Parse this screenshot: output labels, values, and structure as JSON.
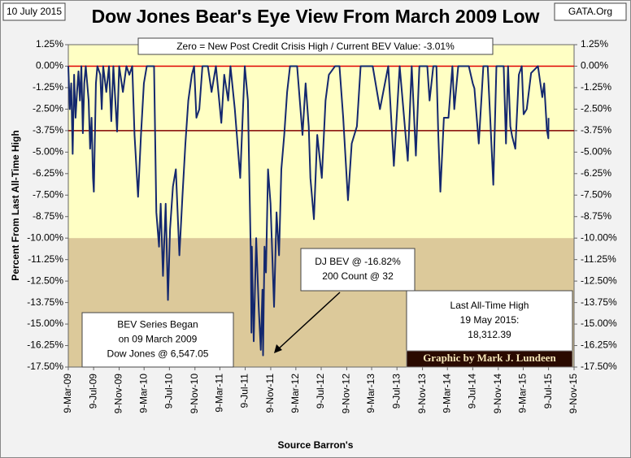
{
  "chart_data": {
    "type": "line",
    "date": "10 July 2015",
    "title": "Dow Jones Bear's Eye View From March 2009 Low",
    "source_tag": "GATA.Org",
    "subtitle": "Zero = New Post Credit Crisis High / Current BEV Value:  -3.01%",
    "y_label": "Percent From Last All-Time High",
    "x_label": "Source Barron's",
    "credit": "Graphic by Mark J. Lundeen",
    "annotations": [
      {
        "lines": [
          "BEV Series Began",
          "on 09 March 2009",
          "Dow Jones @ 6,547.05"
        ]
      },
      {
        "lines": [
          "DJ BEV @ -16.82%",
          "200 Count @ 32"
        ]
      },
      {
        "lines": [
          "Last All-Time High",
          "19 May 2015:",
          "18,312.39"
        ]
      }
    ],
    "reference_lines": [
      {
        "value": 0,
        "color": "#e00000"
      },
      {
        "value": -3.75,
        "color": "#800000"
      }
    ],
    "shade_below": -10,
    "xlim": [
      "2009-03-09",
      "2015-11-09"
    ],
    "xticks": [
      {
        "value": "2009-03-09",
        "label": "9-Mar-09"
      },
      {
        "value": "2009-07-09",
        "label": "9-Jul-09"
      },
      {
        "value": "2009-11-09",
        "label": "9-Nov-09"
      },
      {
        "value": "2010-03-09",
        "label": "9-Mar-10"
      },
      {
        "value": "2010-07-09",
        "label": "9-Jul-10"
      },
      {
        "value": "2010-11-09",
        "label": "9-Nov-10"
      },
      {
        "value": "2011-03-09",
        "label": "9-Mar-11"
      },
      {
        "value": "2011-07-09",
        "label": "9-Jul-11"
      },
      {
        "value": "2011-11-09",
        "label": "9-Nov-11"
      },
      {
        "value": "2012-03-09",
        "label": "9-Mar-12"
      },
      {
        "value": "2012-07-09",
        "label": "9-Jul-12"
      },
      {
        "value": "2012-11-09",
        "label": "9-Nov-12"
      },
      {
        "value": "2013-03-09",
        "label": "9-Mar-13"
      },
      {
        "value": "2013-07-09",
        "label": "9-Jul-13"
      },
      {
        "value": "2013-11-09",
        "label": "9-Nov-13"
      },
      {
        "value": "2014-03-09",
        "label": "9-Mar-14"
      },
      {
        "value": "2014-07-09",
        "label": "9-Jul-14"
      },
      {
        "value": "2014-11-09",
        "label": "9-Nov-14"
      },
      {
        "value": "2015-03-09",
        "label": "9-Mar-15"
      },
      {
        "value": "2015-07-09",
        "label": "9-Jul-15"
      },
      {
        "value": "2015-11-09",
        "label": "9-Nov-15"
      }
    ],
    "ylim": [
      -17.5,
      1.25
    ],
    "yticks": [
      {
        "value": 1.25,
        "label": "1.25%"
      },
      {
        "value": 0,
        "label": "0.00%"
      },
      {
        "value": -1.25,
        "label": "-1.25%"
      },
      {
        "value": -2.5,
        "label": "-2.50%"
      },
      {
        "value": -3.75,
        "label": "-3.75%"
      },
      {
        "value": -5,
        "label": "-5.00%"
      },
      {
        "value": -6.25,
        "label": "-6.25%"
      },
      {
        "value": -7.5,
        "label": "-7.50%"
      },
      {
        "value": -8.75,
        "label": "-8.75%"
      },
      {
        "value": -10,
        "label": "-10.00%"
      },
      {
        "value": -11.25,
        "label": "-11.25%"
      },
      {
        "value": -12.5,
        "label": "-12.50%"
      },
      {
        "value": -13.75,
        "label": "-13.75%"
      },
      {
        "value": -15,
        "label": "-15.00%"
      },
      {
        "value": -16.25,
        "label": "-16.25%"
      },
      {
        "value": -17.5,
        "label": "-17.50%"
      }
    ],
    "x": [
      "2009-03-09",
      "2009-03-16",
      "2009-03-23",
      "2009-03-30",
      "2009-04-06",
      "2009-04-13",
      "2009-04-20",
      "2009-04-27",
      "2009-05-04",
      "2009-05-11",
      "2009-05-18",
      "2009-05-25",
      "2009-06-01",
      "2009-06-15",
      "2009-06-22",
      "2009-06-29",
      "2009-07-06",
      "2009-07-10",
      "2009-07-20",
      "2009-07-27",
      "2009-08-10",
      "2009-08-17",
      "2009-08-24",
      "2009-09-08",
      "2009-09-21",
      "2009-10-02",
      "2009-10-12",
      "2009-10-30",
      "2009-11-09",
      "2009-11-27",
      "2009-12-14",
      "2009-12-28",
      "2010-01-11",
      "2010-01-22",
      "2010-02-08",
      "2010-02-22",
      "2010-03-08",
      "2010-03-22",
      "2010-04-05",
      "2010-04-26",
      "2010-05-07",
      "2010-05-20",
      "2010-05-28",
      "2010-06-08",
      "2010-06-21",
      "2010-07-02",
      "2010-07-12",
      "2010-07-26",
      "2010-08-09",
      "2010-08-26",
      "2010-09-10",
      "2010-09-24",
      "2010-10-08",
      "2010-10-25",
      "2010-11-05",
      "2010-11-16",
      "2010-11-30",
      "2010-12-15",
      "2011-01-10",
      "2011-01-28",
      "2011-02-18",
      "2011-03-16",
      "2011-03-30",
      "2011-04-18",
      "2011-04-29",
      "2011-05-20",
      "2011-06-15",
      "2011-06-30",
      "2011-07-07",
      "2011-07-22",
      "2011-08-05",
      "2011-08-08",
      "2011-08-10",
      "2011-08-19",
      "2011-08-31",
      "2011-09-12",
      "2011-09-22",
      "2011-09-30",
      "2011-10-03",
      "2011-10-10",
      "2011-10-17",
      "2011-10-27",
      "2011-11-08",
      "2011-11-25",
      "2011-12-07",
      "2011-12-19",
      "2011-12-30",
      "2012-01-13",
      "2012-01-27",
      "2012-02-10",
      "2012-03-15",
      "2012-04-10",
      "2012-04-25",
      "2012-05-10",
      "2012-05-18",
      "2012-06-04",
      "2012-06-20",
      "2012-07-12",
      "2012-07-30",
      "2012-08-15",
      "2012-09-14",
      "2012-10-05",
      "2012-10-23",
      "2012-11-15",
      "2012-12-03",
      "2012-12-28",
      "2013-01-15",
      "2013-02-15",
      "2013-03-14",
      "2013-04-18",
      "2013-05-28",
      "2013-06-24",
      "2013-07-22",
      "2013-08-30",
      "2013-09-18",
      "2013-10-08",
      "2013-10-25",
      "2013-12-02",
      "2013-12-13",
      "2013-12-31",
      "2014-01-15",
      "2014-01-24",
      "2014-02-03",
      "2014-02-20",
      "2014-03-14",
      "2014-04-02",
      "2014-04-11",
      "2014-04-30",
      "2014-06-20",
      "2014-07-09",
      "2014-07-17",
      "2014-08-07",
      "2014-08-29",
      "2014-09-19",
      "2014-10-01",
      "2014-10-16",
      "2014-10-31",
      "2014-12-05",
      "2014-12-16",
      "2014-12-26",
      "2015-01-06",
      "2015-01-15",
      "2015-01-30",
      "2015-02-16",
      "2015-03-02",
      "2015-03-11",
      "2015-03-26",
      "2015-04-16",
      "2015-05-19",
      "2015-06-09",
      "2015-06-18",
      "2015-07-01",
      "2015-07-08",
      "2015-07-09"
    ],
    "series": [
      {
        "name": "DJ BEV",
        "color": "#14286e",
        "values": [
          0,
          -2.5,
          -1,
          -5.1,
          -0.5,
          -3,
          -1.5,
          -0.3,
          -2,
          0,
          -3.9,
          -1,
          0,
          -2,
          -4.8,
          -3,
          -6.5,
          -7.3,
          -1,
          0,
          -0.5,
          -2.5,
          0,
          -1.5,
          0,
          -3.2,
          0,
          -3.8,
          0,
          -1.5,
          0,
          -0.5,
          0,
          -4,
          -7.6,
          -4,
          -1,
          0,
          0,
          0,
          -8.5,
          -10.5,
          -8,
          -12.2,
          -8,
          -13.6,
          -9.5,
          -7,
          -6,
          -11,
          -7.5,
          -4.5,
          -2,
          -0.5,
          0,
          -3,
          -2.5,
          0,
          0,
          -1.5,
          0,
          -3.3,
          -0.5,
          -2,
          0,
          -2.5,
          -6.5,
          -2,
          0,
          -2,
          -11,
          -15.5,
          -10.5,
          -16,
          -10,
          -14,
          -16.5,
          -13,
          -16.82,
          -10.5,
          -12,
          -6,
          -8,
          -14,
          -8.5,
          -11,
          -6,
          -4,
          -1.5,
          0,
          0,
          -4,
          -1,
          -3.5,
          -6.5,
          -8.9,
          -4,
          -6.5,
          -2,
          -0.5,
          0,
          0,
          -3,
          -7.8,
          -4.5,
          -3.5,
          0,
          0,
          0,
          -2.5,
          0,
          -5.8,
          0,
          -5.5,
          0,
          -5.2,
          0,
          0,
          -2,
          0,
          0,
          -4,
          -7.3,
          -3,
          -3,
          0,
          -2.5,
          0,
          0,
          -1,
          -1.3,
          -4.5,
          0,
          0,
          -3,
          -6.9,
          0,
          0,
          -4.5,
          0,
          -3.5,
          -4.1,
          -4.8,
          -0.5,
          0,
          -2.8,
          -2.5,
          -0.4,
          0,
          -1.8,
          -1,
          -3.7,
          -4.2,
          -3.01
        ]
      }
    ]
  }
}
